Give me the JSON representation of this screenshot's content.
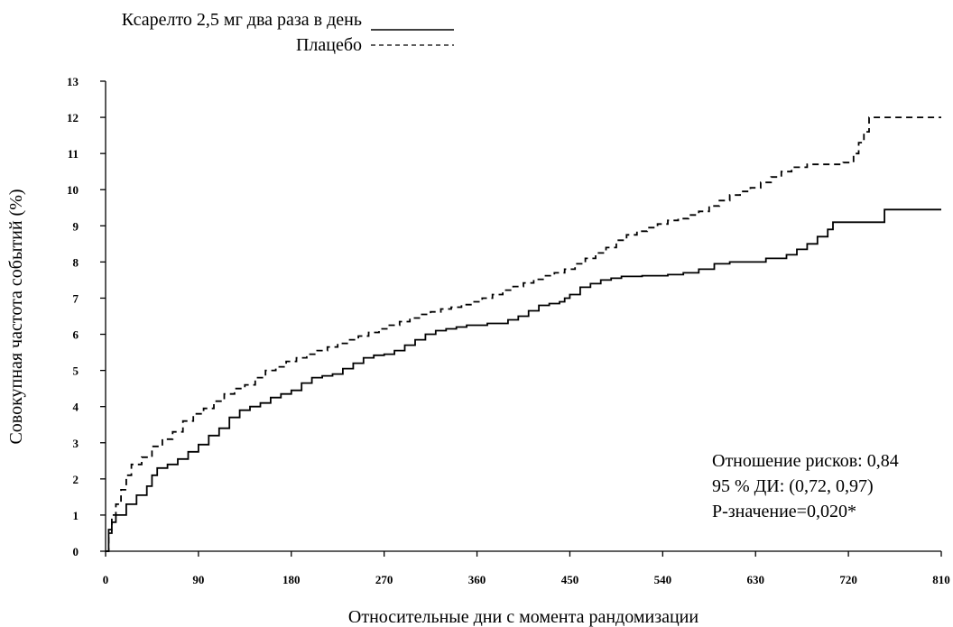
{
  "chart_data": {
    "type": "line",
    "title": "",
    "xlabel": "Относительные дни с момента рандомизации",
    "ylabel": "Совокупная частота событий (%)",
    "xlim": [
      0,
      810
    ],
    "ylim": [
      0,
      13
    ],
    "x_ticks": [
      "0",
      "90",
      "180",
      "270",
      "360",
      "450",
      "540",
      "630",
      "720",
      "810"
    ],
    "y_ticks": [
      "0",
      "1",
      "2",
      "3",
      "4",
      "5",
      "6",
      "7",
      "8",
      "9",
      "10",
      "11",
      "12",
      "13"
    ],
    "grid": false,
    "legend_position": "top-left",
    "series": [
      {
        "name": "Ксарелто 2,5 мг два раза в день",
        "line_style": "solid",
        "color": "#000000",
        "points": [
          [
            0,
            0
          ],
          [
            3,
            0.5
          ],
          [
            6,
            0.8
          ],
          [
            10,
            1.0
          ],
          [
            20,
            1.3
          ],
          [
            30,
            1.55
          ],
          [
            40,
            1.8
          ],
          [
            45,
            2.1
          ],
          [
            50,
            2.3
          ],
          [
            60,
            2.4
          ],
          [
            70,
            2.55
          ],
          [
            80,
            2.75
          ],
          [
            90,
            2.95
          ],
          [
            100,
            3.2
          ],
          [
            110,
            3.4
          ],
          [
            120,
            3.7
          ],
          [
            130,
            3.9
          ],
          [
            140,
            4.0
          ],
          [
            150,
            4.1
          ],
          [
            160,
            4.25
          ],
          [
            170,
            4.35
          ],
          [
            180,
            4.45
          ],
          [
            190,
            4.65
          ],
          [
            200,
            4.8
          ],
          [
            210,
            4.85
          ],
          [
            220,
            4.9
          ],
          [
            230,
            5.05
          ],
          [
            240,
            5.2
          ],
          [
            250,
            5.35
          ],
          [
            260,
            5.42
          ],
          [
            270,
            5.45
          ],
          [
            280,
            5.55
          ],
          [
            290,
            5.7
          ],
          [
            300,
            5.85
          ],
          [
            310,
            6.0
          ],
          [
            320,
            6.1
          ],
          [
            330,
            6.15
          ],
          [
            340,
            6.2
          ],
          [
            350,
            6.25
          ],
          [
            360,
            6.25
          ],
          [
            370,
            6.3
          ],
          [
            380,
            6.3
          ],
          [
            390,
            6.4
          ],
          [
            400,
            6.5
          ],
          [
            410,
            6.65
          ],
          [
            420,
            6.8
          ],
          [
            430,
            6.85
          ],
          [
            440,
            6.9
          ],
          [
            445,
            7.0
          ],
          [
            450,
            7.1
          ],
          [
            460,
            7.3
          ],
          [
            470,
            7.4
          ],
          [
            480,
            7.5
          ],
          [
            490,
            7.55
          ],
          [
            500,
            7.6
          ],
          [
            520,
            7.62
          ],
          [
            545,
            7.65
          ],
          [
            560,
            7.7
          ],
          [
            575,
            7.8
          ],
          [
            590,
            7.95
          ],
          [
            605,
            8.0
          ],
          [
            625,
            8.0
          ],
          [
            640,
            8.1
          ],
          [
            660,
            8.2
          ],
          [
            670,
            8.35
          ],
          [
            680,
            8.5
          ],
          [
            690,
            8.7
          ],
          [
            700,
            8.9
          ],
          [
            705,
            9.1
          ],
          [
            715,
            9.1
          ],
          [
            730,
            9.1
          ],
          [
            750,
            9.1
          ],
          [
            755,
            9.45
          ],
          [
            800,
            9.45
          ],
          [
            810,
            9.45
          ]
        ]
      },
      {
        "name": "Плацебо",
        "line_style": "dashed",
        "color": "#000000",
        "points": [
          [
            0,
            0
          ],
          [
            3,
            0.6
          ],
          [
            6,
            1.0
          ],
          [
            10,
            1.3
          ],
          [
            15,
            1.7
          ],
          [
            20,
            2.1
          ],
          [
            25,
            2.4
          ],
          [
            35,
            2.6
          ],
          [
            45,
            2.9
          ],
          [
            55,
            3.1
          ],
          [
            65,
            3.3
          ],
          [
            75,
            3.6
          ],
          [
            85,
            3.8
          ],
          [
            95,
            3.95
          ],
          [
            105,
            4.15
          ],
          [
            115,
            4.35
          ],
          [
            125,
            4.5
          ],
          [
            135,
            4.6
          ],
          [
            145,
            4.8
          ],
          [
            155,
            5.0
          ],
          [
            165,
            5.1
          ],
          [
            175,
            5.25
          ],
          [
            185,
            5.35
          ],
          [
            195,
            5.45
          ],
          [
            205,
            5.55
          ],
          [
            215,
            5.65
          ],
          [
            225,
            5.75
          ],
          [
            235,
            5.85
          ],
          [
            245,
            5.95
          ],
          [
            255,
            6.05
          ],
          [
            265,
            6.15
          ],
          [
            275,
            6.25
          ],
          [
            285,
            6.35
          ],
          [
            295,
            6.45
          ],
          [
            305,
            6.55
          ],
          [
            315,
            6.62
          ],
          [
            325,
            6.7
          ],
          [
            335,
            6.75
          ],
          [
            345,
            6.82
          ],
          [
            355,
            6.9
          ],
          [
            365,
            7.0
          ],
          [
            375,
            7.1
          ],
          [
            385,
            7.22
          ],
          [
            395,
            7.32
          ],
          [
            405,
            7.42
          ],
          [
            415,
            7.52
          ],
          [
            425,
            7.62
          ],
          [
            435,
            7.7
          ],
          [
            445,
            7.8
          ],
          [
            455,
            7.95
          ],
          [
            465,
            8.1
          ],
          [
            475,
            8.25
          ],
          [
            485,
            8.4
          ],
          [
            495,
            8.6
          ],
          [
            505,
            8.75
          ],
          [
            515,
            8.85
          ],
          [
            525,
            8.95
          ],
          [
            535,
            9.05
          ],
          [
            545,
            9.15
          ],
          [
            555,
            9.2
          ],
          [
            565,
            9.3
          ],
          [
            575,
            9.4
          ],
          [
            585,
            9.55
          ],
          [
            595,
            9.7
          ],
          [
            605,
            9.85
          ],
          [
            615,
            9.95
          ],
          [
            625,
            10.05
          ],
          [
            635,
            10.2
          ],
          [
            645,
            10.35
          ],
          [
            655,
            10.5
          ],
          [
            665,
            10.62
          ],
          [
            680,
            10.7
          ],
          [
            700,
            10.7
          ],
          [
            715,
            10.75
          ],
          [
            725,
            11.0
          ],
          [
            730,
            11.3
          ],
          [
            735,
            11.6
          ],
          [
            740,
            12.0
          ],
          [
            760,
            12.0
          ],
          [
            790,
            12.0
          ],
          [
            810,
            12.0
          ]
        ]
      }
    ],
    "annotation": {
      "hazard_ratio": "Отношение рисков: 0,84",
      "ci": "95 % ДИ: (0,72, 0,97)",
      "p_value": "P-значение=0,020*"
    }
  }
}
